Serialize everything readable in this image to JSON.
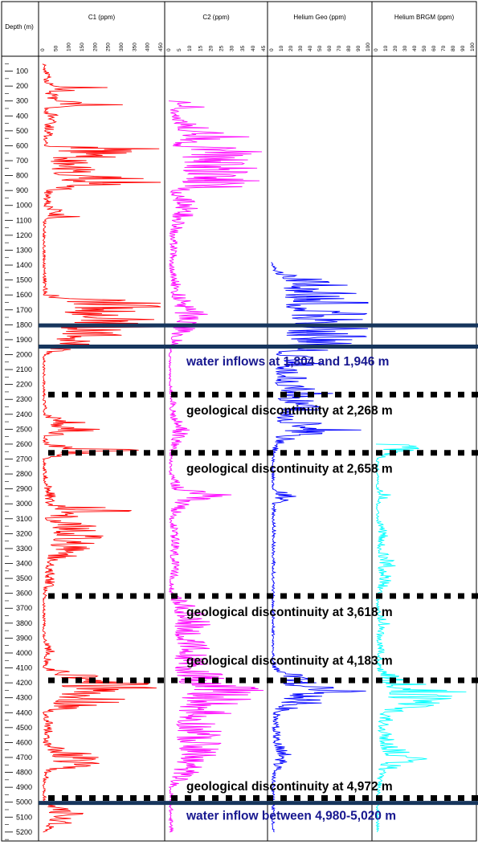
{
  "colors": {
    "c1": "#ff0000",
    "c2": "#ff00ff",
    "he_geo": "#0000ff",
    "he_brgm": "#00ffff",
    "water_line": "#17365d",
    "water_text": "#17178f",
    "discontinuity_line": "#000000",
    "discontinuity_text": "#000000"
  },
  "chart_data": {
    "type": "line",
    "orientation": "vertical-log",
    "depth_axis": {
      "label": "Depth (m)",
      "range": [
        0,
        5260
      ],
      "ticks": [
        100,
        200,
        300,
        400,
        500,
        600,
        700,
        800,
        900,
        1000,
        1100,
        1200,
        1300,
        1400,
        1500,
        1600,
        1700,
        1800,
        1900,
        2000,
        2100,
        2200,
        2300,
        2400,
        2500,
        2600,
        2700,
        2800,
        2900,
        3000,
        3100,
        3200,
        3300,
        3400,
        3500,
        3600,
        3700,
        3800,
        3900,
        4000,
        4100,
        4200,
        4300,
        4400,
        4500,
        4600,
        4700,
        4800,
        4900,
        5000,
        5100,
        5200
      ],
      "inverted": true
    },
    "tracks": [
      {
        "name": "C1 (ppm)",
        "color": "#ff0000",
        "range": [
          0,
          450
        ],
        "ticks": [
          0,
          50,
          100,
          150,
          200,
          250,
          300,
          350,
          400,
          450
        ],
        "profile": [
          [
            50,
            10
          ],
          [
            200,
            45
          ],
          [
            210,
            260
          ],
          [
            250,
            60
          ],
          [
            300,
            55
          ],
          [
            320,
            440
          ],
          [
            350,
            30
          ],
          [
            400,
            60
          ],
          [
            450,
            50
          ],
          [
            500,
            45
          ],
          [
            550,
            35
          ],
          [
            600,
            20
          ],
          [
            620,
            450
          ],
          [
            700,
            200
          ],
          [
            800,
            200
          ],
          [
            820,
            450
          ],
          [
            830,
            450
          ],
          [
            850,
            450
          ],
          [
            900,
            40
          ],
          [
            1000,
            30
          ],
          [
            1080,
            150
          ],
          [
            1100,
            20
          ],
          [
            1200,
            10
          ],
          [
            1300,
            10
          ],
          [
            1400,
            10
          ],
          [
            1500,
            15
          ],
          [
            1600,
            20
          ],
          [
            1650,
            450
          ],
          [
            1700,
            450
          ],
          [
            1750,
            450
          ],
          [
            1800,
            450
          ],
          [
            1850,
            400
          ],
          [
            1900,
            350
          ],
          [
            1950,
            200
          ],
          [
            2000,
            10
          ],
          [
            2100,
            10
          ],
          [
            2200,
            10
          ],
          [
            2300,
            10
          ],
          [
            2400,
            20
          ],
          [
            2500,
            280
          ],
          [
            2550,
            10
          ],
          [
            2600,
            30
          ],
          [
            2650,
            450
          ],
          [
            2700,
            10
          ],
          [
            2800,
            15
          ],
          [
            2900,
            40
          ],
          [
            3000,
            60
          ],
          [
            3050,
            420
          ],
          [
            3100,
            30
          ],
          [
            3150,
            250
          ],
          [
            3200,
            240
          ],
          [
            3300,
            180
          ],
          [
            3400,
            80
          ],
          [
            3500,
            60
          ],
          [
            3600,
            20
          ],
          [
            3650,
            10
          ],
          [
            3700,
            10
          ],
          [
            3800,
            10
          ],
          [
            3900,
            10
          ],
          [
            4000,
            50
          ],
          [
            4100,
            10
          ],
          [
            4200,
            400
          ],
          [
            4250,
            450
          ],
          [
            4300,
            420
          ],
          [
            4400,
            10
          ],
          [
            4500,
            50
          ],
          [
            4600,
            20
          ],
          [
            4650,
            100
          ],
          [
            4700,
            280
          ],
          [
            4750,
            200
          ],
          [
            4800,
            30
          ],
          [
            4900,
            10
          ],
          [
            5000,
            15
          ],
          [
            5100,
            200
          ],
          [
            5200,
            10
          ]
        ]
      },
      {
        "name": "C2 (ppm)",
        "color": "#ff00ff",
        "range": [
          0,
          45
        ],
        "ticks": [
          0,
          5,
          10,
          15,
          20,
          25,
          30,
          35,
          40,
          45
        ],
        "profile": [
          [
            300,
            0
          ],
          [
            330,
            38
          ],
          [
            350,
            3
          ],
          [
            400,
            8
          ],
          [
            450,
            12
          ],
          [
            500,
            30
          ],
          [
            520,
            42
          ],
          [
            550,
            40
          ],
          [
            580,
            20
          ],
          [
            600,
            10
          ],
          [
            610,
            45
          ],
          [
            620,
            45
          ],
          [
            700,
            42
          ],
          [
            800,
            42
          ],
          [
            820,
            45
          ],
          [
            850,
            45
          ],
          [
            870,
            45
          ],
          [
            900,
            5
          ],
          [
            1000,
            15
          ],
          [
            1100,
            10
          ],
          [
            1200,
            3
          ],
          [
            1300,
            5
          ],
          [
            1400,
            2
          ],
          [
            1500,
            5
          ],
          [
            1600,
            8
          ],
          [
            1650,
            15
          ],
          [
            1700,
            20
          ],
          [
            1750,
            18
          ],
          [
            1800,
            15
          ],
          [
            1850,
            10
          ],
          [
            1900,
            8
          ],
          [
            1950,
            2
          ],
          [
            2000,
            1
          ],
          [
            2100,
            1
          ],
          [
            2200,
            1
          ],
          [
            2300,
            5
          ],
          [
            2400,
            3
          ],
          [
            2500,
            12
          ],
          [
            2600,
            5
          ],
          [
            2700,
            2
          ],
          [
            2800,
            2
          ],
          [
            2900,
            8
          ],
          [
            2940,
            30
          ],
          [
            3000,
            10
          ],
          [
            3100,
            3
          ],
          [
            3200,
            5
          ],
          [
            3300,
            5
          ],
          [
            3400,
            5
          ],
          [
            3500,
            4
          ],
          [
            3600,
            2
          ],
          [
            3700,
            15
          ],
          [
            3800,
            20
          ],
          [
            3900,
            18
          ],
          [
            4000,
            20
          ],
          [
            4100,
            18
          ],
          [
            4200,
            35
          ],
          [
            4250,
            45
          ],
          [
            4300,
            40
          ],
          [
            4350,
            35
          ],
          [
            4400,
            30
          ],
          [
            4500,
            25
          ],
          [
            4600,
            25
          ],
          [
            4700,
            22
          ],
          [
            4800,
            15
          ],
          [
            4900,
            2
          ],
          [
            5000,
            2
          ],
          [
            5100,
            2
          ],
          [
            5200,
            2
          ]
        ]
      },
      {
        "name": "Helium Geo (ppm)",
        "color": "#0000ff",
        "range": [
          0,
          100
        ],
        "ticks": [
          0,
          10,
          20,
          30,
          40,
          50,
          60,
          70,
          80,
          90,
          100
        ],
        "profile": [
          [
            1380,
            0
          ],
          [
            1420,
            5
          ],
          [
            1450,
            15
          ],
          [
            1500,
            100
          ],
          [
            1550,
            80
          ],
          [
            1600,
            90
          ],
          [
            1650,
            100
          ],
          [
            1700,
            100
          ],
          [
            1750,
            100
          ],
          [
            1800,
            100
          ],
          [
            1850,
            100
          ],
          [
            1900,
            100
          ],
          [
            1950,
            80
          ],
          [
            2000,
            30
          ],
          [
            2050,
            60
          ],
          [
            2100,
            25
          ],
          [
            2150,
            40
          ],
          [
            2200,
            20
          ],
          [
            2250,
            70
          ],
          [
            2300,
            40
          ],
          [
            2350,
            65
          ],
          [
            2400,
            30
          ],
          [
            2450,
            40
          ],
          [
            2500,
            100
          ],
          [
            2550,
            30
          ],
          [
            2600,
            10
          ],
          [
            2650,
            5
          ],
          [
            2700,
            3
          ],
          [
            2800,
            3
          ],
          [
            2900,
            3
          ],
          [
            2950,
            30
          ],
          [
            3000,
            5
          ],
          [
            3100,
            3
          ],
          [
            3200,
            5
          ],
          [
            3300,
            3
          ],
          [
            3400,
            5
          ],
          [
            3500,
            3
          ],
          [
            3600,
            3
          ],
          [
            3700,
            3
          ],
          [
            3800,
            3
          ],
          [
            3900,
            3
          ],
          [
            4000,
            3
          ],
          [
            4100,
            5
          ],
          [
            4200,
            70
          ],
          [
            4250,
            100
          ],
          [
            4300,
            80
          ],
          [
            4350,
            40
          ],
          [
            4400,
            10
          ],
          [
            4500,
            8
          ],
          [
            4600,
            10
          ],
          [
            4700,
            25
          ],
          [
            4800,
            5
          ],
          [
            4900,
            3
          ],
          [
            5000,
            3
          ],
          [
            5100,
            3
          ],
          [
            5200,
            3
          ]
        ]
      },
      {
        "name": "Helium BRGM (ppm)",
        "color": "#00ffff",
        "range": [
          0,
          100
        ],
        "ticks": [
          0,
          10,
          20,
          30,
          40,
          50,
          60,
          70,
          80,
          90,
          100
        ],
        "profile": [
          [
            2600,
            0
          ],
          [
            2610,
            100
          ],
          [
            2630,
            50
          ],
          [
            2700,
            3
          ],
          [
            2800,
            3
          ],
          [
            2900,
            3
          ],
          [
            2940,
            20
          ],
          [
            3000,
            3
          ],
          [
            3100,
            3
          ],
          [
            3200,
            15
          ],
          [
            3300,
            10
          ],
          [
            3400,
            25
          ],
          [
            3450,
            10
          ],
          [
            3500,
            20
          ],
          [
            3600,
            5
          ],
          [
            3700,
            3
          ],
          [
            3800,
            15
          ],
          [
            3900,
            5
          ],
          [
            4000,
            10
          ],
          [
            4100,
            5
          ],
          [
            4200,
            40
          ],
          [
            4250,
            100
          ],
          [
            4300,
            80
          ],
          [
            4350,
            60
          ],
          [
            4400,
            20
          ],
          [
            4500,
            15
          ],
          [
            4600,
            20
          ],
          [
            4650,
            40
          ],
          [
            4700,
            60
          ],
          [
            4750,
            30
          ],
          [
            4800,
            10
          ],
          [
            4900,
            5
          ],
          [
            5000,
            3
          ],
          [
            5100,
            3
          ],
          [
            5200,
            3
          ]
        ]
      }
    ],
    "water_inflows": [
      1804,
      1946,
      5005
    ],
    "discontinuities": [
      2268,
      2658,
      3618,
      4183,
      4972
    ],
    "annotations": [
      {
        "text": "water inflows at 1,804 and 1,946 m",
        "depth": 2045,
        "style": "water"
      },
      {
        "text": "geological discontinuity at 2,268 m",
        "depth": 2375,
        "style": "discontinuity"
      },
      {
        "text": "geological discontinuity at 2,658 m",
        "depth": 2765,
        "style": "discontinuity"
      },
      {
        "text": "geological discontinuity at 3,618 m",
        "depth": 3725,
        "style": "discontinuity"
      },
      {
        "text": "geological discontinuity at 4,183 m",
        "depth": 4050,
        "style": "discontinuity"
      },
      {
        "text": "geological discontinuity at 4,972 m",
        "depth": 4895,
        "style": "discontinuity"
      },
      {
        "text": "water inflow between 4,980-5,020 m",
        "depth": 5090,
        "style": "water"
      }
    ]
  }
}
